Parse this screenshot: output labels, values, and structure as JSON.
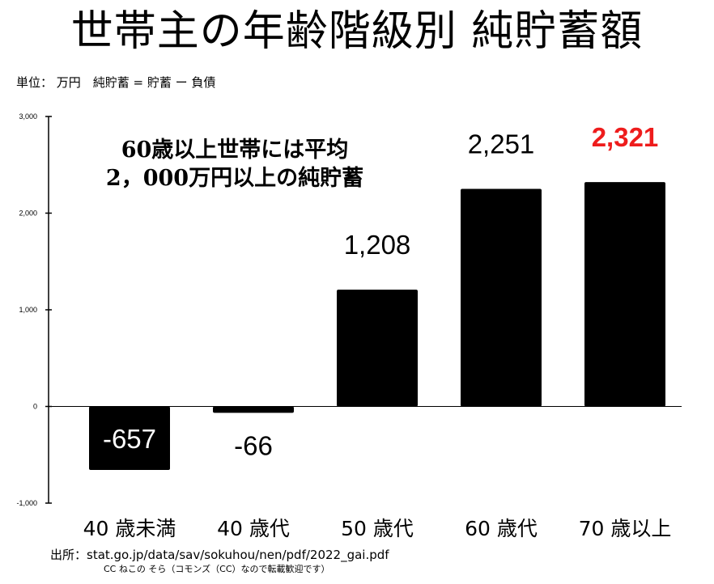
{
  "title": "世帯主の年齢階級別 純貯蓄額",
  "unit_note": "単位： 万円　純貯蓄 = 貯蓄 ー 負債",
  "annotation": {
    "line1": "60歳以上世帯には平均",
    "line2": "2，000万円以上の純貯蓄"
  },
  "source": "出所：stat.go.jp/data/sav/sokuhou/nen/pdf/2022_gai.pdf",
  "license": "CC ねこの そら（コモンズ（CC）なので転載歓迎です）",
  "chart_data": {
    "type": "bar",
    "categories": [
      "40 歳未満",
      "40 歳代",
      "50 歳代",
      "60 歳代",
      "70 歳以上"
    ],
    "values": [
      -657,
      -66,
      1208,
      2251,
      2321
    ],
    "value_labels": [
      "-657",
      "-66",
      "1,208",
      "2,251",
      "2,321"
    ],
    "ylim": [
      -1000,
      3000
    ],
    "yticks": [
      -1000,
      0,
      1000,
      2000,
      3000
    ],
    "ytick_labels": [
      "-1,000",
      "0",
      "1,000",
      "2,000",
      "3,000"
    ],
    "bar_color": "#000000",
    "label_color": "#000000",
    "highlight_color": "#ee1c1c",
    "highlight_index": 4,
    "grid": false,
    "legend": "none"
  }
}
